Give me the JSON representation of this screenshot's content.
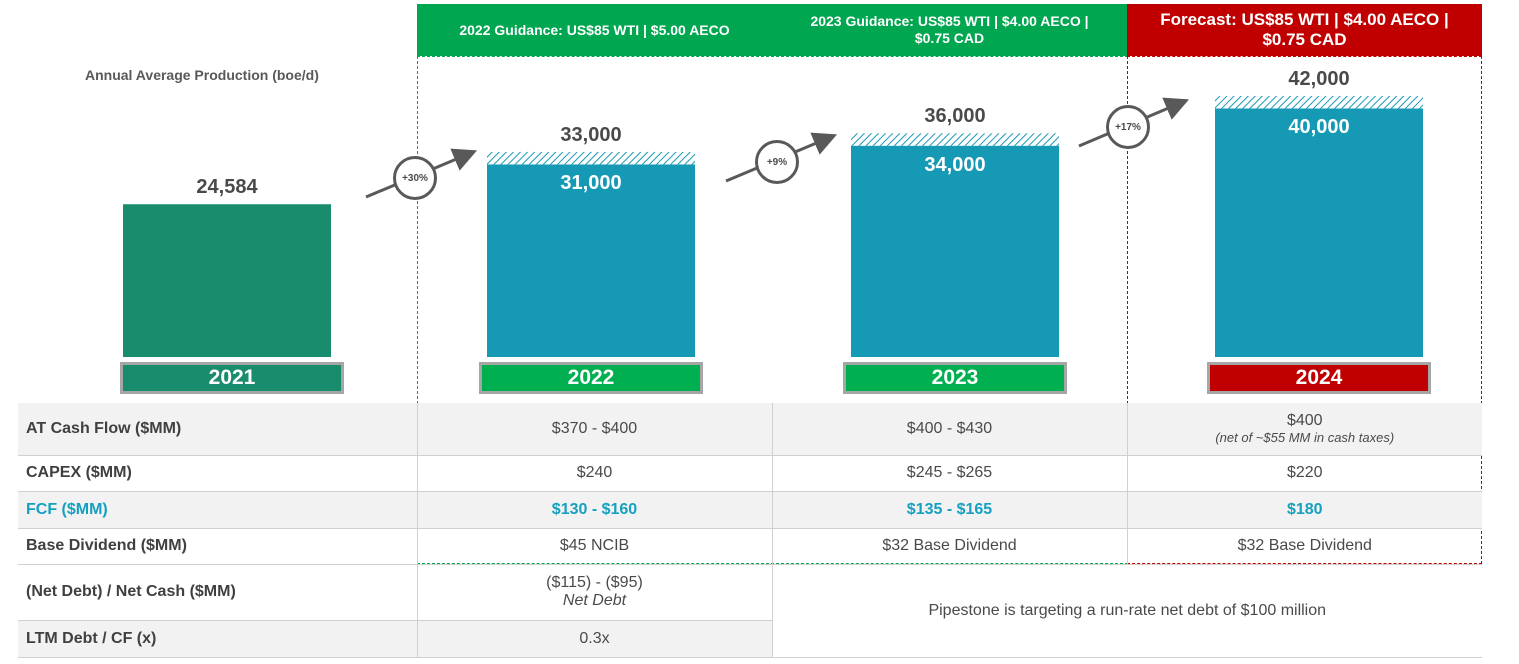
{
  "banners": {
    "g2022": "2022 Guidance: US$85 WTI | $5.00 AECO",
    "g2023_line1": "2023 Guidance: US$85 WTI | $4.00 AECO |",
    "g2023_line2": "$0.75 CAD",
    "f2024_line1": "Forecast: US$85 WTI | $4.00 AECO |",
    "f2024_line2": "$0.75 CAD"
  },
  "chart_data": {
    "type": "bar",
    "title": "",
    "ylabel": "Annual Average Production (boe/d)",
    "xlabel": "",
    "categories": [
      "2021",
      "2022",
      "2023",
      "2024"
    ],
    "series": [
      {
        "values": [
          24584,
          31000,
          34000,
          40000
        ]
      },
      {
        "values": [
          0,
          2000,
          2000,
          2000
        ]
      }
    ],
    "top_labels": [
      "24,584",
      "33,000",
      "36,000",
      "42,000"
    ],
    "inner_labels": [
      "",
      "31,000",
      "34,000",
      "40,000"
    ],
    "growth": [
      "+30%",
      "+9%",
      "+17%"
    ],
    "ylim": [
      0,
      42000
    ],
    "colors": {
      "actual": "#1a8c6e",
      "guidance": "#1699b5",
      "year_2021": "#1a8c6e",
      "year_guidance": "#00b050",
      "year_forecast": "#c00000"
    }
  },
  "table": {
    "rows": [
      {
        "label": "AT Cash Flow ($MM)",
        "c2022": "$370 - $400",
        "c2023": "$400 - $430",
        "c2024": "$400",
        "c2024_note": "(net of ~$55 MM in cash taxes)"
      },
      {
        "label": "CAPEX ($MM)",
        "c2022": "$240",
        "c2023": "$245 - $265",
        "c2024": "$220"
      },
      {
        "label": "FCF ($MM)",
        "c2022": "$130 - $160",
        "c2023": "$135 - $165",
        "c2024": "$180"
      },
      {
        "label": "Base Dividend ($MM)",
        "c2022": "$45 NCIB",
        "c2023": "$32 Base Dividend",
        "c2024": "$32 Base Dividend"
      },
      {
        "label": "(Net Debt) / Net Cash ($MM)",
        "c2022": "($115) - ($95)",
        "c2022_note": "Net Debt"
      },
      {
        "label": "LTM Debt / CF (x)",
        "c2022": "0.3x"
      }
    ],
    "target_note": "Pipestone is targeting a run-rate net debt of $100 million"
  }
}
